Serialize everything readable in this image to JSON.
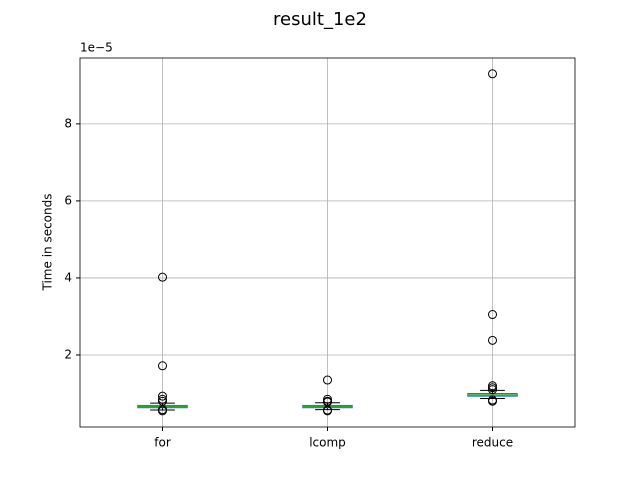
{
  "chart_data": {
    "type": "box",
    "title": "result_1e2",
    "y_label": "Time in seconds",
    "y_offset": "1e−5",
    "categories": [
      "for",
      "lcomp",
      "reduce"
    ],
    "boxes": [
      {
        "whislo": 0.57,
        "q1": 0.63,
        "med": 0.66,
        "q3": 0.69,
        "whishi": 0.75,
        "fliers": [
          4.02,
          1.72,
          0.93,
          0.85,
          0.8,
          0.58,
          0.55
        ]
      },
      {
        "whislo": 0.58,
        "q1": 0.63,
        "med": 0.66,
        "q3": 0.69,
        "whishi": 0.76,
        "fliers": [
          1.35,
          0.85,
          0.8,
          0.78,
          0.57,
          0.55
        ]
      },
      {
        "whislo": 0.87,
        "q1": 0.93,
        "med": 0.96,
        "q3": 1.0,
        "whishi": 1.08,
        "fliers": [
          9.3,
          3.05,
          2.38,
          1.2,
          1.15,
          1.1,
          0.83,
          0.8
        ]
      }
    ],
    "box_color": "#1f77b4",
    "median_color": "#2ca02c",
    "whisker_color": "#000000",
    "ylim": [
      0.13,
      9.71
    ],
    "yticks": [
      2,
      4,
      6,
      8
    ],
    "grid": true
  }
}
